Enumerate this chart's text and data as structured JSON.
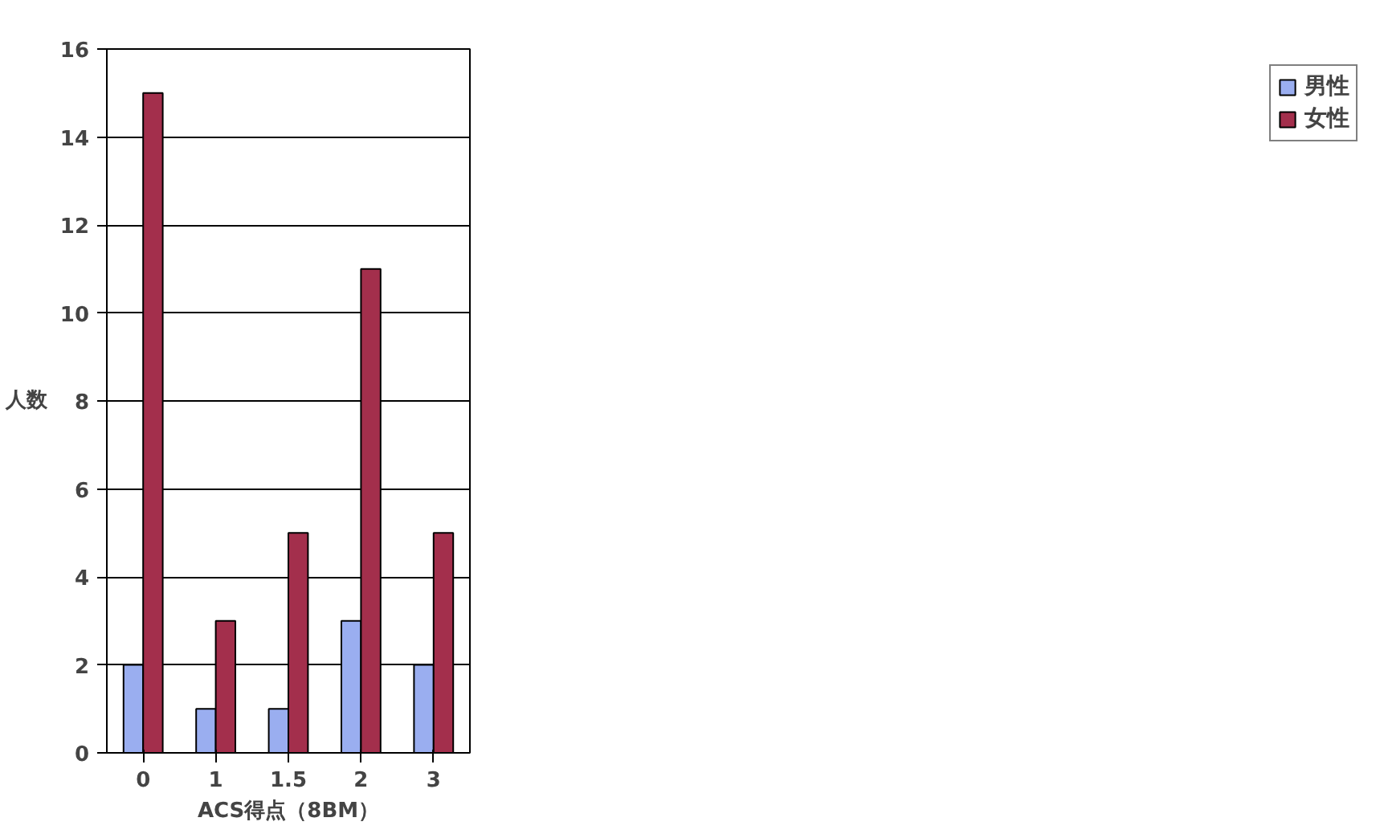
{
  "chart_data": {
    "type": "bar",
    "xlabel": "ACS得点（8BM）",
    "ylabel": "人数",
    "categories": [
      "0",
      "1",
      "1.5",
      "2",
      "3"
    ],
    "series": [
      {
        "name": "男性",
        "color": "#9aaef0",
        "values": [
          2,
          1,
          1,
          3,
          2
        ]
      },
      {
        "name": "女性",
        "color": "#a32f4c",
        "values": [
          15,
          3,
          5,
          11,
          5
        ]
      }
    ],
    "ylim": [
      0,
      16
    ],
    "yticks": [
      0,
      2,
      4,
      6,
      8,
      10,
      12,
      14,
      16
    ],
    "grid": "y",
    "legend": "right"
  }
}
